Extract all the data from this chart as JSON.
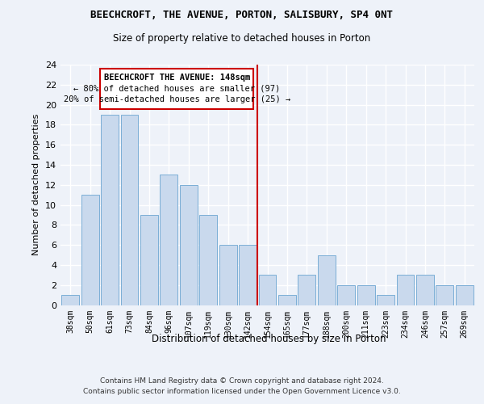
{
  "title1": "BEECHCROFT, THE AVENUE, PORTON, SALISBURY, SP4 0NT",
  "title2": "Size of property relative to detached houses in Porton",
  "xlabel": "Distribution of detached houses by size in Porton",
  "ylabel": "Number of detached properties",
  "footnote1": "Contains HM Land Registry data © Crown copyright and database right 2024.",
  "footnote2": "Contains public sector information licensed under the Open Government Licence v3.0.",
  "categories": [
    "38sqm",
    "50sqm",
    "61sqm",
    "73sqm",
    "84sqm",
    "96sqm",
    "107sqm",
    "119sqm",
    "130sqm",
    "142sqm",
    "154sqm",
    "165sqm",
    "177sqm",
    "188sqm",
    "200sqm",
    "211sqm",
    "223sqm",
    "234sqm",
    "246sqm",
    "257sqm",
    "269sqm"
  ],
  "values": [
    1,
    11,
    19,
    19,
    9,
    13,
    12,
    9,
    6,
    6,
    3,
    1,
    3,
    5,
    2,
    2,
    1,
    3,
    3,
    2,
    2
  ],
  "bar_color": "#c9d9ed",
  "bar_edge_color": "#7aaed6",
  "vline_index": 9,
  "vline_color": "#cc0000",
  "annotation_title": "BEECHCROFT THE AVENUE: 148sqm",
  "annotation_line1": "← 80% of detached houses are smaller (97)",
  "annotation_line2": "20% of semi-detached houses are larger (25) →",
  "annotation_box_color": "#cc0000",
  "ylim": [
    0,
    24
  ],
  "yticks": [
    0,
    2,
    4,
    6,
    8,
    10,
    12,
    14,
    16,
    18,
    20,
    22,
    24
  ],
  "background_color": "#eef2f9",
  "grid_color": "#ffffff"
}
